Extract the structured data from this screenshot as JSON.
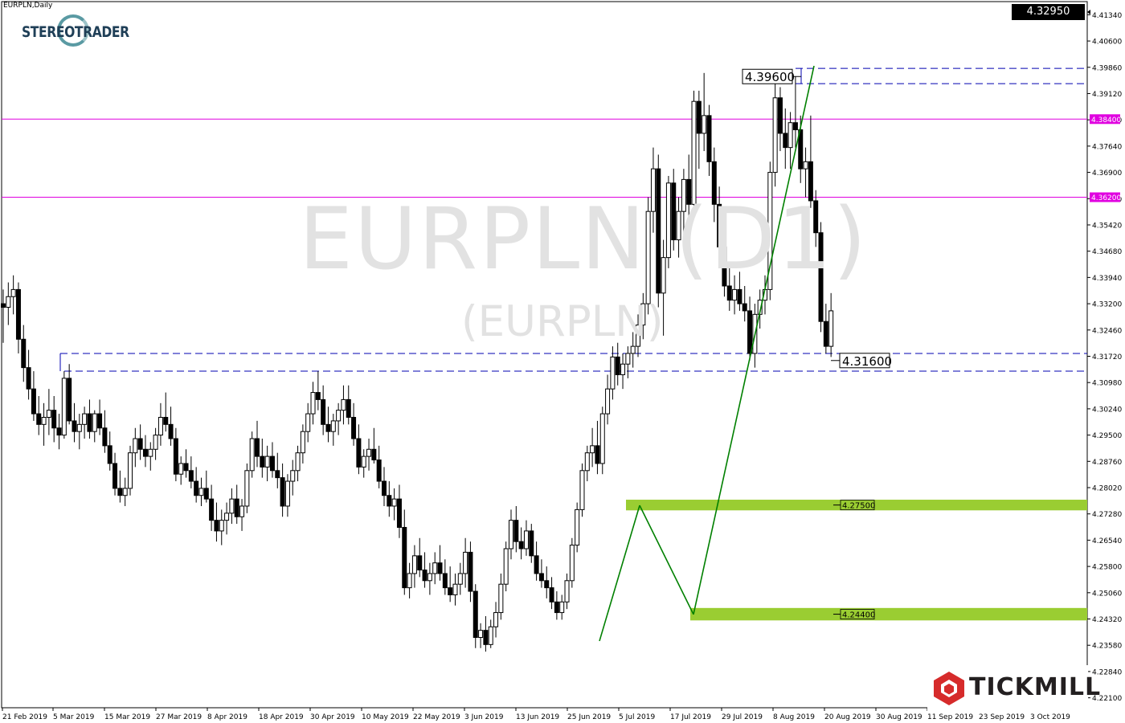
{
  "symbol_label": "EURPLN,Daily",
  "logo_text_a": "STEREO",
  "logo_text_b": "TRADER",
  "watermark_title": "EURPLN (D1)",
  "watermark_sub": "(EURPLN)",
  "current_price_label": "4.32950",
  "brand": "TICKMILL",
  "colors": {
    "bull_body": "#ffffff",
    "bear_body": "#000000",
    "magenta_line": "#e000e0",
    "dashed_line": "#0000b0",
    "trend_line": "#008000",
    "zone": "#9acd32",
    "brand_red": "#d62b2b"
  },
  "chart_data": {
    "type": "candlestick",
    "title": "EURPLN (D1)",
    "subtitle": "(EURPLN)",
    "ylim": [
      4.2182,
      4.4171
    ],
    "y_ticks": [
      "4.41340",
      "4.40600",
      "4.39860",
      "4.39120",
      "4.38380",
      "4.37640",
      "4.36900",
      "4.36160",
      "4.35420",
      "4.34680",
      "4.33940",
      "4.33200",
      "4.32460",
      "4.31720",
      "4.30980",
      "4.30240",
      "4.29500",
      "4.28760",
      "4.28020",
      "4.27280",
      "4.26540",
      "4.25800",
      "4.25060",
      "4.24320",
      "4.23580",
      "4.22840",
      "4.22100"
    ],
    "x_ticks": [
      "21 Feb 2019",
      "5 Mar 2019",
      "15 Mar 2019",
      "27 Mar 2019",
      "8 Apr 2019",
      "18 Apr 2019",
      "30 Apr 2019",
      "10 May 2019",
      "22 May 2019",
      "3 Jun 2019",
      "13 Jun 2019",
      "25 Jun 2019",
      "5 Jul 2019",
      "17 Jul 2019",
      "29 Jul 2019",
      "8 Aug 2019",
      "20 Aug 2019",
      "30 Aug 2019",
      "11 Sep 2019",
      "23 Sep 2019",
      "3 Oct 2019"
    ],
    "horizontal_lines": [
      {
        "value": 4.384,
        "label": "4.38400",
        "style": "solid",
        "color": "#e000e0"
      },
      {
        "value": 4.362,
        "label": "4.36200",
        "style": "solid",
        "color": "#e000e0"
      }
    ],
    "dashed_lines": [
      {
        "value": 4.3983
      },
      {
        "value": 4.394
      },
      {
        "value": 4.318
      },
      {
        "value": 4.313
      }
    ],
    "zones": [
      {
        "from": 4.2738,
        "to": 4.2768,
        "label": "4.27500"
      },
      {
        "from": 4.2428,
        "to": 4.2463,
        "label": "4.24400"
      }
    ],
    "price_annotations": [
      {
        "label": "4.39600",
        "value": 4.396
      },
      {
        "label": "4.31600",
        "value": 4.316
      }
    ],
    "ohlc": [
      [
        4.332,
        4.336,
        4.321,
        4.331
      ],
      [
        4.331,
        4.338,
        4.326,
        4.334
      ],
      [
        4.334,
        4.34,
        4.329,
        4.336
      ],
      [
        4.336,
        4.338,
        4.318,
        4.322
      ],
      [
        4.322,
        4.326,
        4.31,
        4.314
      ],
      [
        4.314,
        4.319,
        4.305,
        4.308
      ],
      [
        4.308,
        4.313,
        4.299,
        4.301
      ],
      [
        4.301,
        4.306,
        4.295,
        4.298
      ],
      [
        4.298,
        4.304,
        4.292,
        4.3
      ],
      [
        4.3,
        4.308,
        4.295,
        4.302
      ],
      [
        4.302,
        4.306,
        4.293,
        4.297
      ],
      [
        4.297,
        4.301,
        4.291,
        4.295
      ],
      [
        4.295,
        4.313,
        4.294,
        4.311
      ],
      [
        4.311,
        4.315,
        4.298,
        4.299
      ],
      [
        4.299,
        4.304,
        4.293,
        4.296
      ],
      [
        4.296,
        4.301,
        4.291,
        4.298
      ],
      [
        4.298,
        4.303,
        4.294,
        4.301
      ],
      [
        4.301,
        4.305,
        4.294,
        4.296
      ],
      [
        4.296,
        4.302,
        4.293,
        4.301
      ],
      [
        4.301,
        4.305,
        4.295,
        4.297
      ],
      [
        4.297,
        4.302,
        4.29,
        4.292
      ],
      [
        4.292,
        4.296,
        4.285,
        4.287
      ],
      [
        4.287,
        4.29,
        4.278,
        4.28
      ],
      [
        4.28,
        4.285,
        4.276,
        4.278
      ],
      [
        4.278,
        4.283,
        4.275,
        4.28
      ],
      [
        4.28,
        4.292,
        4.278,
        4.29
      ],
      [
        4.29,
        4.297,
        4.286,
        4.294
      ],
      [
        4.294,
        4.298,
        4.288,
        4.291
      ],
      [
        4.291,
        4.295,
        4.286,
        4.289
      ],
      [
        4.289,
        4.293,
        4.285,
        4.291
      ],
      [
        4.291,
        4.297,
        4.288,
        4.295
      ],
      [
        4.295,
        4.304,
        4.292,
        4.3
      ],
      [
        4.3,
        4.307,
        4.296,
        4.298
      ],
      [
        4.298,
        4.303,
        4.292,
        4.294
      ],
      [
        4.294,
        4.297,
        4.282,
        4.284
      ],
      [
        4.284,
        4.289,
        4.281,
        4.287
      ],
      [
        4.287,
        4.291,
        4.283,
        4.285
      ],
      [
        4.285,
        4.289,
        4.28,
        4.282
      ],
      [
        4.282,
        4.286,
        4.276,
        4.278
      ],
      [
        4.278,
        4.283,
        4.275,
        4.28
      ],
      [
        4.28,
        4.285,
        4.276,
        4.277
      ],
      [
        4.277,
        4.281,
        4.268,
        4.271
      ],
      [
        4.271,
        4.276,
        4.265,
        4.268
      ],
      [
        4.268,
        4.274,
        4.264,
        4.271
      ],
      [
        4.271,
        4.276,
        4.267,
        4.273
      ],
      [
        4.273,
        4.28,
        4.27,
        4.277
      ],
      [
        4.277,
        4.281,
        4.27,
        4.272
      ],
      [
        4.272,
        4.277,
        4.268,
        4.275
      ],
      [
        4.275,
        4.287,
        4.273,
        4.285
      ],
      [
        4.285,
        4.296,
        4.283,
        4.294
      ],
      [
        4.294,
        4.299,
        4.286,
        4.289
      ],
      [
        4.289,
        4.294,
        4.283,
        4.286
      ],
      [
        4.286,
        4.292,
        4.282,
        4.289
      ],
      [
        4.289,
        4.293,
        4.283,
        4.285
      ],
      [
        4.285,
        4.29,
        4.28,
        4.283
      ],
      [
        4.283,
        4.287,
        4.272,
        4.275
      ],
      [
        4.275,
        4.284,
        4.272,
        4.282
      ],
      [
        4.282,
        4.288,
        4.278,
        4.285
      ],
      [
        4.285,
        4.292,
        4.282,
        4.29
      ],
      [
        4.29,
        4.298,
        4.287,
        4.296
      ],
      [
        4.296,
        4.304,
        4.293,
        4.301
      ],
      [
        4.301,
        4.31,
        4.298,
        4.307
      ],
      [
        4.307,
        4.313,
        4.302,
        4.305
      ],
      [
        4.305,
        4.309,
        4.295,
        4.298
      ],
      [
        4.298,
        4.303,
        4.293,
        4.296
      ],
      [
        4.296,
        4.301,
        4.292,
        4.299
      ],
      [
        4.299,
        4.304,
        4.295,
        4.302
      ],
      [
        4.302,
        4.309,
        4.298,
        4.305
      ],
      [
        4.305,
        4.309,
        4.298,
        4.3
      ],
      [
        4.3,
        4.304,
        4.292,
        4.294
      ],
      [
        4.294,
        4.298,
        4.284,
        4.286
      ],
      [
        4.286,
        4.291,
        4.283,
        4.289
      ],
      [
        4.289,
        4.294,
        4.285,
        4.291
      ],
      [
        4.291,
        4.297,
        4.287,
        4.288
      ],
      [
        4.288,
        4.292,
        4.28,
        4.282
      ],
      [
        4.282,
        4.286,
        4.275,
        4.278
      ],
      [
        4.278,
        4.282,
        4.272,
        4.275
      ],
      [
        4.275,
        4.28,
        4.271,
        4.277
      ],
      [
        4.277,
        4.281,
        4.266,
        4.269
      ],
      [
        4.269,
        4.274,
        4.25,
        4.252
      ],
      [
        4.252,
        4.259,
        4.249,
        4.256
      ],
      [
        4.256,
        4.264,
        4.252,
        4.261
      ],
      [
        4.261,
        4.266,
        4.255,
        4.257
      ],
      [
        4.257,
        4.262,
        4.252,
        4.254
      ],
      [
        4.254,
        4.259,
        4.25,
        4.256
      ],
      [
        4.256,
        4.262,
        4.253,
        4.259
      ],
      [
        4.259,
        4.264,
        4.254,
        4.256
      ],
      [
        4.256,
        4.26,
        4.25,
        4.252
      ],
      [
        4.252,
        4.258,
        4.248,
        4.25
      ],
      [
        4.25,
        4.256,
        4.247,
        4.253
      ],
      [
        4.253,
        4.259,
        4.25,
        4.256
      ],
      [
        4.256,
        4.266,
        4.252,
        4.262
      ],
      [
        4.262,
        4.265,
        4.248,
        4.251
      ],
      [
        4.251,
        4.253,
        4.235,
        4.238
      ],
      [
        4.238,
        4.242,
        4.235,
        4.24
      ],
      [
        4.24,
        4.244,
        4.234,
        4.236
      ],
      [
        4.236,
        4.243,
        4.235,
        4.241
      ],
      [
        4.241,
        4.248,
        4.238,
        4.245
      ],
      [
        4.245,
        4.256,
        4.243,
        4.253
      ],
      [
        4.253,
        4.265,
        4.251,
        4.263
      ],
      [
        4.263,
        4.274,
        4.26,
        4.271
      ],
      [
        4.271,
        4.275,
        4.262,
        4.265
      ],
      [
        4.265,
        4.269,
        4.26,
        4.263
      ],
      [
        4.263,
        4.271,
        4.261,
        4.268
      ],
      [
        4.268,
        4.27,
        4.259,
        4.261
      ],
      [
        4.261,
        4.265,
        4.254,
        4.256
      ],
      [
        4.256,
        4.26,
        4.252,
        4.254
      ],
      [
        4.254,
        4.258,
        4.249,
        4.252
      ],
      [
        4.252,
        4.255,
        4.246,
        4.248
      ],
      [
        4.248,
        4.251,
        4.243,
        4.245
      ],
      [
        4.245,
        4.25,
        4.243,
        4.248
      ],
      [
        4.248,
        4.256,
        4.246,
        4.254
      ],
      [
        4.254,
        4.266,
        4.252,
        4.264
      ],
      [
        4.264,
        4.276,
        4.262,
        4.274
      ],
      [
        4.274,
        4.287,
        4.272,
        4.285
      ],
      [
        4.285,
        4.292,
        4.282,
        4.29
      ],
      [
        4.29,
        4.297,
        4.286,
        4.292
      ],
      [
        4.292,
        4.299,
        4.284,
        4.287
      ],
      [
        4.287,
        4.303,
        4.284,
        4.301
      ],
      [
        4.301,
        4.312,
        4.298,
        4.308
      ],
      [
        4.308,
        4.32,
        4.305,
        4.317
      ],
      [
        4.317,
        4.321,
        4.309,
        4.312
      ],
      [
        4.312,
        4.318,
        4.308,
        4.315
      ],
      [
        4.315,
        4.32,
        4.311,
        4.318
      ],
      [
        4.318,
        4.324,
        4.314,
        4.32
      ],
      [
        4.32,
        4.329,
        4.317,
        4.326
      ],
      [
        4.326,
        4.335,
        4.322,
        4.332
      ],
      [
        4.332,
        4.362,
        4.329,
        4.358
      ],
      [
        4.358,
        4.376,
        4.352,
        4.37
      ],
      [
        4.37,
        4.374,
        4.331,
        4.335
      ],
      [
        4.335,
        4.35,
        4.323,
        4.345
      ],
      [
        4.345,
        4.368,
        4.342,
        4.366
      ],
      [
        4.366,
        4.37,
        4.347,
        4.35
      ],
      [
        4.35,
        4.362,
        4.345,
        4.358
      ],
      [
        4.358,
        4.37,
        4.352,
        4.367
      ],
      [
        4.367,
        4.374,
        4.355,
        4.36
      ],
      [
        4.36,
        4.392,
        4.357,
        4.389
      ],
      [
        4.389,
        4.392,
        4.37,
        4.38
      ],
      [
        4.38,
        4.397,
        4.375,
        4.385
      ],
      [
        4.385,
        4.388,
        4.368,
        4.372
      ],
      [
        4.372,
        4.376,
        4.355,
        4.36
      ],
      [
        4.36,
        4.365,
        4.345,
        4.348
      ],
      [
        4.348,
        4.352,
        4.334,
        4.337
      ],
      [
        4.337,
        4.342,
        4.33,
        4.333
      ],
      [
        4.333,
        4.34,
        4.329,
        4.336
      ],
      [
        4.336,
        4.341,
        4.33,
        4.332
      ],
      [
        4.332,
        4.337,
        4.327,
        4.33
      ],
      [
        4.33,
        4.334,
        4.316,
        4.318
      ],
      [
        4.318,
        4.332,
        4.314,
        4.329
      ],
      [
        4.329,
        4.336,
        4.325,
        4.333
      ],
      [
        4.333,
        4.34,
        4.329,
        4.336
      ],
      [
        4.336,
        4.372,
        4.333,
        4.369
      ],
      [
        4.369,
        4.396,
        4.365,
        4.39
      ],
      [
        4.39,
        4.393,
        4.375,
        4.38
      ],
      [
        4.38,
        4.387,
        4.37,
        4.376
      ],
      [
        4.376,
        4.386,
        4.37,
        4.383
      ],
      [
        4.383,
        4.396,
        4.376,
        4.381
      ],
      [
        4.381,
        4.385,
        4.366,
        4.37
      ],
      [
        4.37,
        4.376,
        4.362,
        4.372
      ],
      [
        4.372,
        4.385,
        4.359,
        4.361
      ],
      [
        4.361,
        4.364,
        4.348,
        4.352
      ],
      [
        4.352,
        4.355,
        4.324,
        4.327
      ],
      [
        4.327,
        4.332,
        4.318,
        4.32
      ],
      [
        4.32,
        4.335,
        4.317,
        4.33
      ]
    ]
  }
}
